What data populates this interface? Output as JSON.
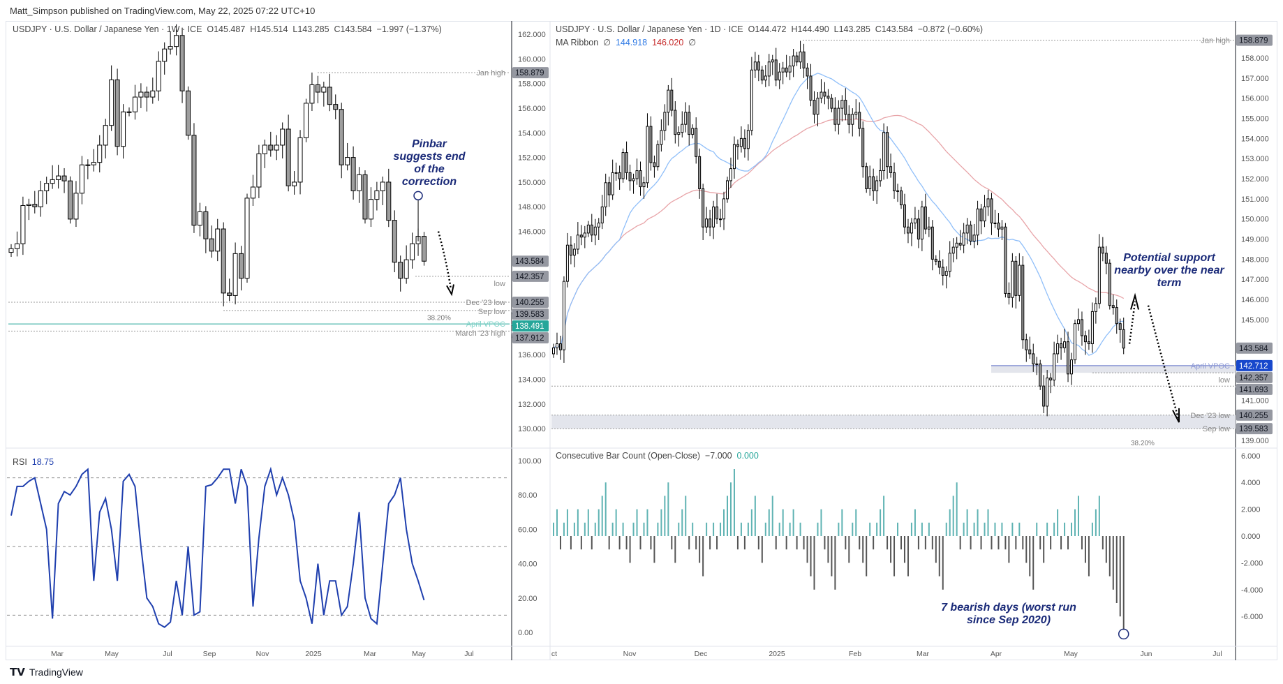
{
  "published": "Matt_Simpson published on TradingView.com, May 22, 2025 07:22 UTC+10",
  "footer": {
    "brand": "TradingView",
    "logo_icon": "tradingview-logo-icon"
  },
  "colors": {
    "candle": "#000000",
    "candle_up_fill": "#ffffff",
    "candle_down_fill": "#9e9e9e",
    "ma_fast": "#90bff9",
    "ma_slow": "#e8a4a8",
    "rsi": "#1f3fae",
    "cbc_up": "#5fb3b3",
    "cbc_down": "#555555",
    "vpoc_left": "#26a69a",
    "vpoc_right": "#1848cc",
    "annotation": "#1a2a78"
  },
  "left": {
    "legend": {
      "symbol": "USDJPY · U.S. Dollar / Japanese Yen · 1W · ICE",
      "o": "O145.487",
      "h": "H145.514",
      "l": "L143.285",
      "c": "C143.584",
      "chg": "−1.997 (−1.37%)"
    },
    "rsi_legend": {
      "name": "RSI",
      "value": "18.75"
    },
    "annotation": "Pinbar suggests end of the correction",
    "levels": [
      {
        "label": "Jan high",
        "price": 158.879,
        "tag": "158.879"
      },
      {
        "label": "low",
        "price": 142.357,
        "tag": "142.357"
      },
      {
        "label": "Dec '23 low",
        "price": 140.255,
        "tag": "140.255"
      },
      {
        "label": "Sep low",
        "price": 139.583,
        "tag": "139.583"
      },
      {
        "label": "April VPOC",
        "price": 138.491,
        "tag": "138.491"
      },
      {
        "label": "March '23 high",
        "price": 137.912,
        "tag": "137.912"
      }
    ],
    "fib_label": "38.20%",
    "last_price": "143.584",
    "time_labels": [
      "Mar",
      "May",
      "Jul",
      "Sep",
      "Nov",
      "2025",
      "Mar",
      "May",
      "Jul"
    ]
  },
  "right": {
    "legend": {
      "symbol": "USDJPY · U.S. Dollar / Japanese Yen · 1D · ICE",
      "o": "O144.472",
      "h": "H144.490",
      "l": "L143.285",
      "c": "C143.584",
      "chg": "−0.872 (−0.60%)"
    },
    "ma_legend": {
      "name": "MA Ribbon",
      "a": "∅",
      "fast": "144.918",
      "slow": "146.020",
      "b": "∅"
    },
    "cbc_legend": {
      "name": "Consecutive Bar Count (Open-Close)",
      "value": "−7.000",
      "value2": "0.000"
    },
    "annotation_support": "Potential support nearby over the near term",
    "annotation_bearish": "7 bearish days (worst run since Sep 2020)",
    "levels": [
      {
        "label": "Jan high",
        "price": 158.879,
        "tag": "158.879"
      },
      {
        "label": "April VPOC",
        "price": 142.712,
        "tag": "142.712"
      },
      {
        "label": "low",
        "price": 142.357,
        "tag": "142.357"
      },
      {
        "label": "",
        "price": 141.693,
        "tag": "141.693"
      },
      {
        "label": "Dec '23 low",
        "price": 140.255,
        "tag": "140.255"
      },
      {
        "label": "Sep low",
        "price": 139.583,
        "tag": "139.583"
      }
    ],
    "fib_label": "38.20%",
    "last_price": "143.584",
    "time_labels": [
      "ct",
      "Nov",
      "Dec",
      "2025",
      "Feb",
      "Mar",
      "Apr",
      "May",
      "Jun",
      "Jul"
    ]
  },
  "chart_data": [
    {
      "type": "candlestick",
      "timeframe": "1W",
      "ylim": [
        130,
        162
      ],
      "yticks_step": 2,
      "close": [
        144.6,
        145.0,
        148.1,
        148.2,
        148.0,
        149.3,
        149.9,
        150.2,
        150.5,
        150.1,
        147.0,
        149.1,
        151.4,
        151.4,
        151.6,
        153.0,
        154.6,
        158.3,
        152.9,
        155.7,
        155.7,
        156.9,
        157.3,
        156.9,
        157.4,
        159.8,
        160.8,
        161.0,
        161.9,
        157.4,
        153.8,
        146.5,
        147.6,
        145.4,
        144.4,
        146.2,
        141.0,
        140.8,
        144.2,
        142.2,
        148.7,
        149.6,
        152.3,
        153.0,
        152.6,
        153.0,
        154.3,
        149.7,
        150.0,
        153.6,
        156.4,
        157.9,
        157.3,
        157.7,
        156.3,
        155.9,
        151.4,
        152.0,
        149.3,
        150.6,
        147.0,
        148.6,
        149.3,
        150.0,
        146.9,
        143.5,
        142.2,
        143.7,
        145.0,
        145.6,
        143.584
      ]
    },
    {
      "type": "line",
      "name": "RSI",
      "ylim": [
        0,
        100
      ],
      "yticks": [
        0,
        20,
        40,
        60,
        80,
        100
      ],
      "guides": [
        90,
        50,
        10
      ],
      "values": [
        68,
        85,
        85,
        88,
        90,
        75,
        60,
        8,
        75,
        82,
        80,
        85,
        92,
        95,
        30,
        70,
        78,
        60,
        30,
        88,
        92,
        85,
        50,
        20,
        15,
        5,
        3,
        6,
        30,
        10,
        50,
        10,
        12,
        85,
        86,
        90,
        95,
        95,
        75,
        95,
        85,
        15,
        55,
        85,
        95,
        80,
        90,
        80,
        65,
        30,
        20,
        5,
        40,
        10,
        30,
        30,
        10,
        15,
        40,
        70,
        20,
        8,
        5,
        40,
        75,
        80,
        90,
        60,
        40,
        30,
        18.75
      ]
    },
    {
      "type": "candlestick",
      "timeframe": "1D",
      "ylim": [
        139,
        158
      ],
      "yticks_step": 1,
      "close": [
        143.6,
        143.8,
        143.5,
        146.9,
        148.7,
        148.2,
        148.5,
        149.2,
        149.1,
        149.3,
        149.7,
        149.2,
        149.6,
        149.8,
        150.6,
        151.8,
        151.2,
        152.3,
        152.3,
        152.0,
        153.3,
        152.3,
        151.9,
        152.0,
        152.4,
        151.6,
        151.8,
        154.6,
        152.8,
        152.6,
        153.7,
        154.4,
        155.3,
        156.4,
        155.4,
        154.2,
        154.3,
        154.7,
        155.3,
        154.2,
        154.5,
        153.1,
        151.5,
        149.6,
        150.0,
        149.6,
        150.6,
        150.0,
        150.0,
        151.0,
        151.9,
        152.5,
        153.7,
        153.6,
        154.0,
        153.5,
        154.4,
        157.4,
        157.8,
        157.4,
        156.9,
        157.1,
        157.8,
        157.9,
        156.9,
        157.3,
        157.5,
        157.3,
        157.6,
        158.1,
        157.8,
        158.3,
        157.5,
        157.1,
        155.9,
        155.2,
        156.0,
        156.3,
        156.1,
        156.0,
        155.5,
        154.7,
        155.5,
        155.9,
        155.2,
        154.7,
        155.2,
        155.3,
        154.5,
        152.6,
        151.5,
        152.1,
        151.4,
        151.9,
        152.4,
        154.3,
        152.6,
        152.3,
        151.4,
        151.4,
        150.7,
        149.6,
        149.3,
        149.8,
        150.0,
        149.0,
        150.6,
        149.5,
        149.6,
        148.0,
        147.9,
        147.6,
        147.2,
        147.4,
        148.3,
        148.6,
        148.8,
        148.7,
        149.3,
        149.7,
        148.9,
        149.2,
        150.5,
        149.9,
        150.6,
        151.0,
        149.8,
        149.8,
        149.5,
        149.6,
        146.3,
        146.1,
        147.9,
        146.2,
        147.7,
        144.0,
        143.5,
        143.3,
        142.8,
        142.8,
        141.7,
        140.7,
        142.1,
        142.0,
        143.3,
        143.8,
        143.6,
        143.9,
        142.3,
        143.0,
        144.8,
        145.0,
        144.2,
        143.9,
        143.8,
        145.4,
        145.8,
        148.6,
        148.3,
        147.8,
        145.7,
        145.6,
        144.8,
        144.5,
        143.584
      ]
    },
    {
      "type": "bar",
      "name": "Consecutive Bar Count (Open-Close)",
      "ylim": [
        -7,
        7
      ],
      "yticks": [
        6,
        4,
        2,
        0,
        -2,
        -4,
        -6
      ],
      "last": -7
    }
  ]
}
